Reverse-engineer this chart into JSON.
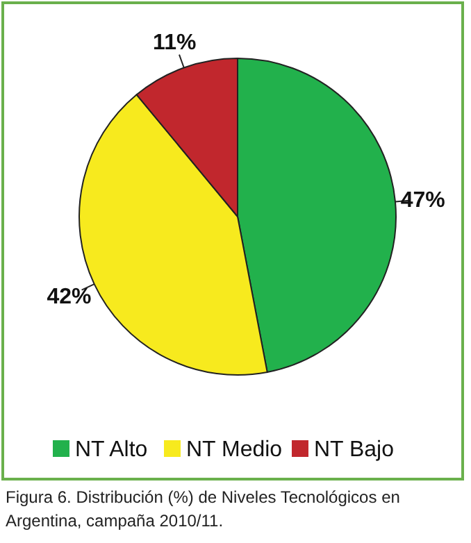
{
  "chart_data": {
    "type": "pie",
    "categories": [
      "NT Alto",
      "NT Medio",
      "NT Bajo"
    ],
    "values": [
      47,
      42,
      11
    ],
    "colors": [
      "#22b14c",
      "#f7ea1e",
      "#c1272d"
    ],
    "value_labels": [
      "47%",
      "42%",
      "11%"
    ],
    "legend": "bottom",
    "annotations": [
      "Figura 6. Distribución (%) de Niveles Tecnológicos en Argentina, campaña 2010/11."
    ]
  }
}
